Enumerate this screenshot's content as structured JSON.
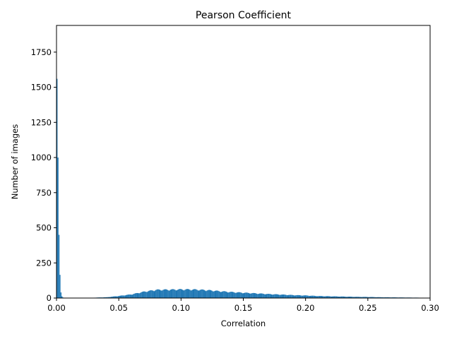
{
  "chart_data": {
    "type": "bar",
    "title": "Pearson Coefficient",
    "xlabel": "Correlation",
    "ylabel": "Number of images",
    "xlim": [
      0.0,
      0.3
    ],
    "ylim": [
      0,
      1940
    ],
    "grid": false,
    "bar_color": "#1f77b4",
    "x_ticks": [
      "0.00",
      "0.05",
      "0.10",
      "0.15",
      "0.20",
      "0.25",
      "0.30"
    ],
    "y_ticks": [
      "0",
      "250",
      "500",
      "750",
      "1000",
      "1250",
      "1500",
      "1750"
    ],
    "spikes": [
      {
        "x": 0.0,
        "value": 1560
      },
      {
        "x": 0.0008,
        "value": 1000
      },
      {
        "x": 0.0016,
        "value": 450
      },
      {
        "x": 0.0024,
        "value": 165
      },
      {
        "x": 0.0032,
        "value": 40
      },
      {
        "x": 0.004,
        "value": 12
      },
      {
        "x": 0.0048,
        "value": 4
      }
    ],
    "distribution": [
      {
        "x": 0.03,
        "value": 3
      },
      {
        "x": 0.04,
        "value": 6
      },
      {
        "x": 0.05,
        "value": 16
      },
      {
        "x": 0.06,
        "value": 28
      },
      {
        "x": 0.07,
        "value": 48
      },
      {
        "x": 0.08,
        "value": 62
      },
      {
        "x": 0.09,
        "value": 63
      },
      {
        "x": 0.1,
        "value": 65
      },
      {
        "x": 0.11,
        "value": 64
      },
      {
        "x": 0.12,
        "value": 60
      },
      {
        "x": 0.13,
        "value": 52
      },
      {
        "x": 0.14,
        "value": 45
      },
      {
        "x": 0.15,
        "value": 40
      },
      {
        "x": 0.16,
        "value": 35
      },
      {
        "x": 0.17,
        "value": 30
      },
      {
        "x": 0.18,
        "value": 26
      },
      {
        "x": 0.19,
        "value": 22
      },
      {
        "x": 0.2,
        "value": 19
      },
      {
        "x": 0.21,
        "value": 15
      },
      {
        "x": 0.22,
        "value": 13
      },
      {
        "x": 0.23,
        "value": 11
      },
      {
        "x": 0.24,
        "value": 9
      },
      {
        "x": 0.25,
        "value": 8
      },
      {
        "x": 0.26,
        "value": 6
      },
      {
        "x": 0.27,
        "value": 5
      },
      {
        "x": 0.28,
        "value": 4
      },
      {
        "x": 0.29,
        "value": 3
      },
      {
        "x": 0.3,
        "value": 2
      }
    ]
  }
}
